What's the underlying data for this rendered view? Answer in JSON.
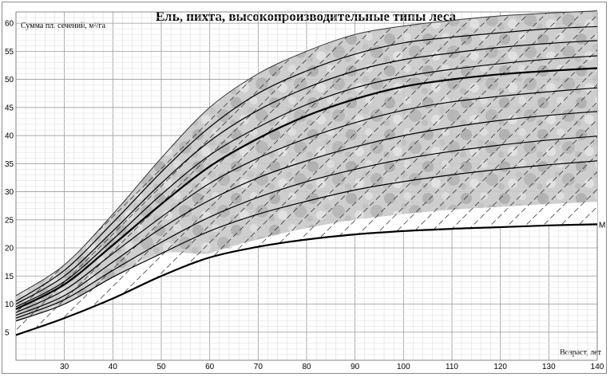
{
  "chart_data": {
    "type": "line",
    "title": "Ель, пихта, высокопроизводительные типы леса",
    "xlabel": "Возраст, лет",
    "ylabel": "Сумма пл. сечений, м²/га",
    "xlim": [
      20,
      140
    ],
    "ylim": [
      0,
      62
    ],
    "x_ticks": [
      30,
      40,
      50,
      60,
      70,
      80,
      90,
      100,
      110,
      120,
      130,
      140
    ],
    "y_ticks": [
      5,
      10,
      15,
      20,
      25,
      30,
      35,
      40,
      45,
      50,
      55,
      60
    ],
    "grid": true,
    "x": [
      20,
      30,
      40,
      50,
      60,
      70,
      80,
      90,
      100,
      110,
      120,
      130,
      140
    ],
    "band_upper": [
      11.5,
      17,
      26,
      36,
      45,
      51,
      55,
      58,
      59.5,
      60.5,
      61.3,
      61.8,
      62.2
    ],
    "band_lower": [
      4.5,
      7.5,
      11,
      15,
      19,
      21.5,
      23.5,
      25,
      26,
      26.8,
      27.3,
      27.8,
      28.2
    ],
    "series": [
      {
        "values": [
          10.5,
          16,
          24.5,
          33.5,
          41.5,
          47.5,
          51.5,
          54.5,
          56.5,
          57.5,
          58.3,
          59,
          59.4
        ]
      },
      {
        "values": [
          10,
          15,
          23,
          31.5,
          39,
          44.5,
          48.5,
          51.5,
          53.5,
          54.7,
          55.7,
          56.4,
          56.9
        ]
      },
      {
        "values": [
          9.5,
          14,
          21.5,
          29.5,
          36.5,
          41.5,
          45.5,
          48.5,
          50.5,
          51.8,
          52.8,
          53.6,
          54.2
        ]
      },
      {
        "values": [
          9.1,
          13.5,
          20.5,
          27.8,
          34.5,
          39.5,
          43.5,
          46.5,
          48.7,
          50,
          50.9,
          51.5,
          52
        ]
      },
      {
        "values": [
          8.5,
          12.5,
          19,
          25.5,
          31.5,
          36,
          39.5,
          42.3,
          44.5,
          46,
          47,
          47.8,
          48.5
        ]
      },
      {
        "values": [
          8,
          11.5,
          17.5,
          23.5,
          28.5,
          32.5,
          35.5,
          38,
          40,
          41.5,
          42.7,
          43.6,
          44.3
        ]
      },
      {
        "values": [
          7.5,
          10.8,
          16,
          21,
          25.5,
          29,
          31.8,
          34,
          35.8,
          37.2,
          38.3,
          39.2,
          39.9
        ]
      },
      {
        "values": [
          7,
          10,
          14.8,
          19,
          23,
          26,
          28.3,
          30.3,
          31.8,
          33,
          34,
          34.8,
          35.5
        ]
      },
      {
        "values": [
          4.5,
          7.5,
          11,
          15,
          18.3,
          20.2,
          21.5,
          22.4,
          23,
          23.4,
          23.7,
          24,
          24.2
        ],
        "name": "M"
      }
    ],
    "shading": "grey mottled band above the white hatched band"
  }
}
